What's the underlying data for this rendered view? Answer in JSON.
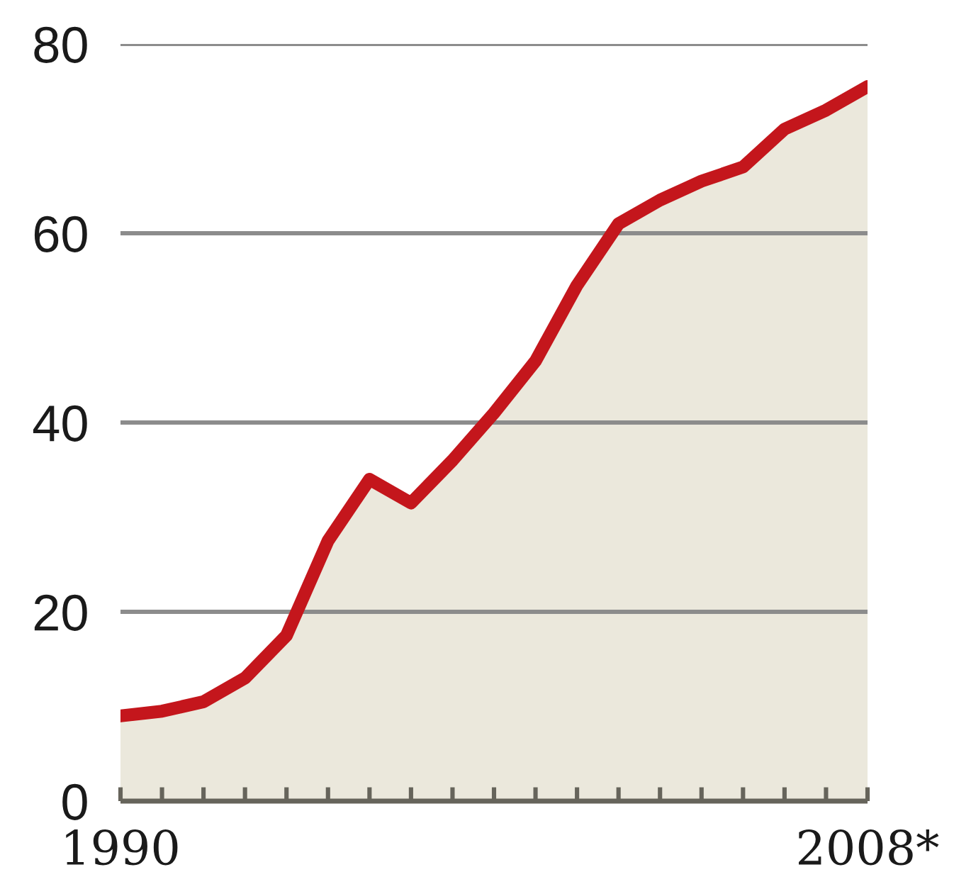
{
  "chart_data": {
    "type": "area",
    "x": [
      1990,
      1991,
      1992,
      1993,
      1994,
      1995,
      1996,
      1997,
      1998,
      1999,
      2000,
      2001,
      2002,
      2003,
      2004,
      2005,
      2006,
      2007,
      2008
    ],
    "series": [
      {
        "color": "#ebe8dc",
        "values": [
          9,
          9.5,
          10.5,
          13,
          17.5,
          27.5,
          34,
          31.5,
          36,
          41,
          46.5,
          54.5,
          61,
          63.5,
          65.5,
          67,
          71,
          73,
          75.5
        ]
      }
    ],
    "xlim": [
      1990,
      2008
    ],
    "xticks": [
      {
        "value": 1990,
        "label": "1990"
      },
      {
        "value": 1991,
        "label": null
      },
      {
        "value": 1992,
        "label": null
      },
      {
        "value": 1993,
        "label": null
      },
      {
        "value": 1994,
        "label": null
      },
      {
        "value": 1995,
        "label": null
      },
      {
        "value": 1996,
        "label": null
      },
      {
        "value": 1997,
        "label": null
      },
      {
        "value": 1998,
        "label": null
      },
      {
        "value": 1999,
        "label": null
      },
      {
        "value": 2000,
        "label": null
      },
      {
        "value": 2001,
        "label": null
      },
      {
        "value": 2002,
        "label": null
      },
      {
        "value": 2003,
        "label": null
      },
      {
        "value": 2004,
        "label": null
      },
      {
        "value": 2005,
        "label": null
      },
      {
        "value": 2006,
        "label": null
      },
      {
        "value": 2007,
        "label": null
      },
      {
        "value": 2008,
        "label": "2008*"
      }
    ],
    "ylim": [
      0,
      80
    ],
    "yticks": [
      0,
      20,
      40,
      60,
      80
    ],
    "grid": "y"
  }
}
